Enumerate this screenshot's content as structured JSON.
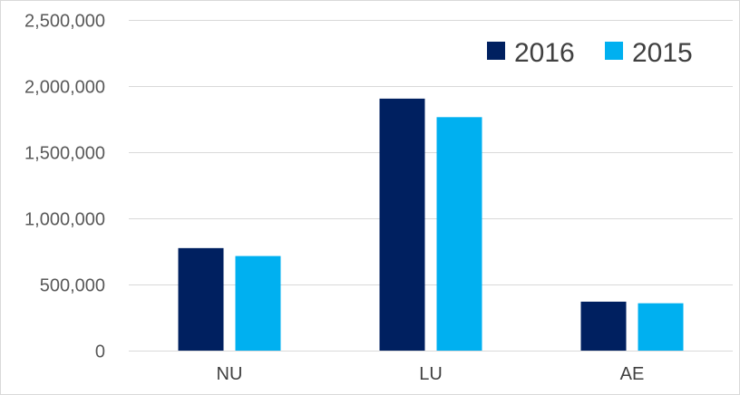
{
  "chart_data": {
    "type": "bar",
    "categories": [
      "NU",
      "LU",
      "AE"
    ],
    "series": [
      {
        "name": "2016",
        "values": [
          775000,
          1905000,
          370000
        ]
      },
      {
        "name": "2015",
        "values": [
          715000,
          1765000,
          358000
        ]
      }
    ],
    "ylim": [
      0,
      2500000
    ],
    "yticks": [
      0,
      500000,
      1000000,
      1500000,
      2000000,
      2500000
    ],
    "ytick_labels": [
      "0",
      "500,000",
      "1,000,000",
      "1,500,000",
      "2,000,000",
      "2,500,000"
    ],
    "grid": true,
    "legend_position": "top-right",
    "colors": {
      "2016": "#002060",
      "2015": "#00b0f0",
      "grid": "#d9d9d9",
      "border": "#d9d9d9"
    }
  }
}
